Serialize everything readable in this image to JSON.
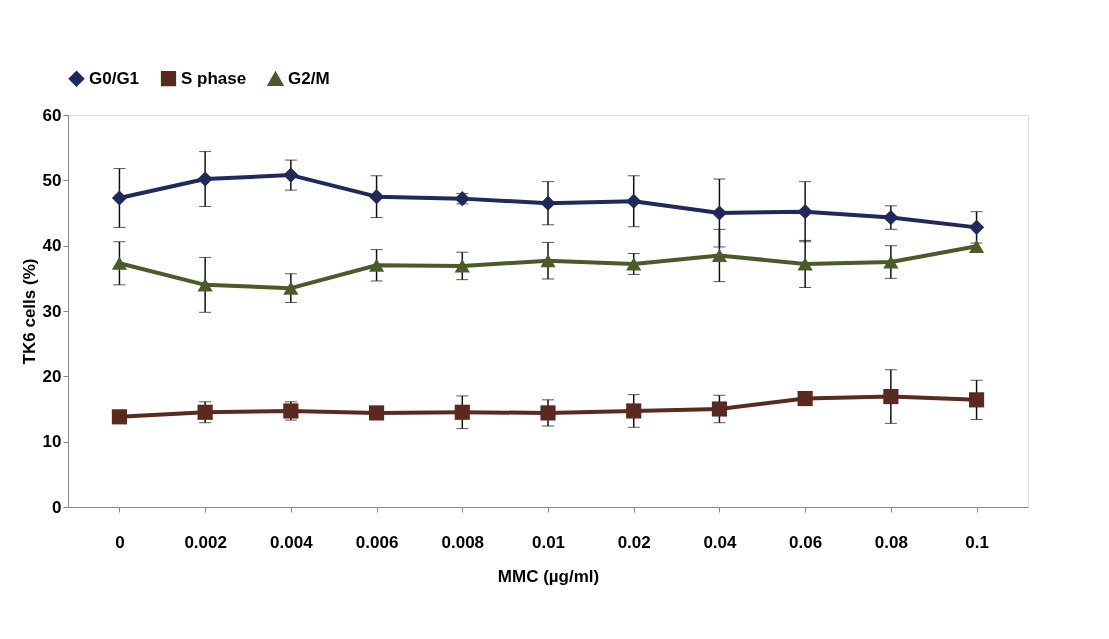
{
  "chart_data": {
    "type": "line",
    "xlabel": "MMC (µg/ml)",
    "ylabel": "TK6 cells (%)",
    "categories": [
      "0",
      "0.002",
      "0.004",
      "0.006",
      "0.008",
      "0.01",
      "0.02",
      "0.04",
      "0.06",
      "0.08",
      "0.1"
    ],
    "ylim": [
      0,
      60
    ],
    "yticks": [
      0,
      10,
      20,
      30,
      40,
      50,
      60
    ],
    "grid": false,
    "legend": "top left",
    "line_style": "solid",
    "series": [
      {
        "name": "G0/G1",
        "color": "#1f2a5a",
        "marker": "diamond",
        "values": [
          47.3,
          50.2,
          50.8,
          47.5,
          47.2,
          46.5,
          46.8,
          45.0,
          45.2,
          44.3,
          42.8
        ],
        "errors": [
          4.5,
          4.2,
          2.3,
          3.2,
          0.8,
          3.3,
          3.9,
          5.2,
          4.6,
          1.8,
          2.4
        ]
      },
      {
        "name": "S phase",
        "color": "#5a2a20",
        "marker": "square",
        "values": [
          13.8,
          14.5,
          14.7,
          14.4,
          14.5,
          14.4,
          14.7,
          15.0,
          16.6,
          16.9,
          16.4
        ],
        "errors": [
          null,
          1.6,
          1.4,
          null,
          2.5,
          2.0,
          2.5,
          2.1,
          null,
          4.1,
          3.0
        ]
      },
      {
        "name": "G2/M",
        "color": "#4a5a28",
        "marker": "triangle",
        "values": [
          37.3,
          34.0,
          33.5,
          37.0,
          36.9,
          37.7,
          37.2,
          38.5,
          37.2,
          37.5,
          39.9
        ],
        "errors": [
          3.3,
          4.2,
          2.2,
          2.4,
          2.1,
          2.8,
          1.6,
          4.0,
          3.6,
          2.5,
          null
        ]
      }
    ]
  }
}
